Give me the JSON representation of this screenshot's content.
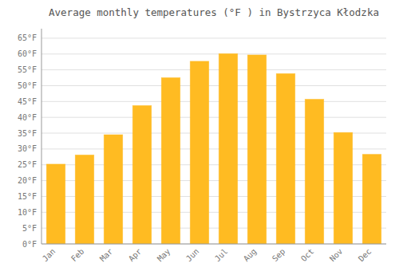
{
  "chart_data": {
    "type": "bar",
    "title": "Average monthly temperatures (°F ) in Bystrzyca Kłodzka",
    "categories": [
      "Jan",
      "Feb",
      "Mar",
      "Apr",
      "May",
      "Jun",
      "Jul",
      "Aug",
      "Sep",
      "Oct",
      "Nov",
      "Dec"
    ],
    "values": [
      25.2,
      28.1,
      34.5,
      43.7,
      52.5,
      57.7,
      60.1,
      59.7,
      53.8,
      45.7,
      35.2,
      28.3
    ],
    "color": "#FFBB22",
    "ylim": [
      0,
      68
    ],
    "yticks": [
      {
        "value": 0,
        "label": "0°F"
      },
      {
        "value": 5,
        "label": "5°F"
      },
      {
        "value": 10,
        "label": "10°F"
      },
      {
        "value": 15,
        "label": "15°F"
      },
      {
        "value": 20,
        "label": "20°F"
      },
      {
        "value": 25,
        "label": "25°F"
      },
      {
        "value": 30,
        "label": "30°F"
      },
      {
        "value": 35,
        "label": "35°F"
      },
      {
        "value": 40,
        "label": "40°F"
      },
      {
        "value": 45,
        "label": "45°F"
      },
      {
        "value": 50,
        "label": "50°F"
      },
      {
        "value": 55,
        "label": "55°F"
      },
      {
        "value": 60,
        "label": "60°F"
      },
      {
        "value": 65,
        "label": "65°F"
      }
    ],
    "grid": true
  }
}
